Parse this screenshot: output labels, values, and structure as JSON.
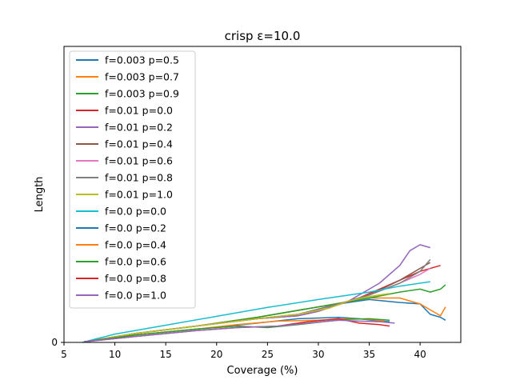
{
  "chart_data": {
    "type": "line",
    "title": "crisp ε=10.0",
    "xlabel": "Coverage (%)",
    "ylabel": "Length",
    "xlim": [
      5,
      44
    ],
    "ylim": [
      0,
      10
    ],
    "xticks": [
      5,
      10,
      15,
      20,
      25,
      30,
      35,
      40
    ],
    "yticks": [
      0
    ],
    "legend_position": "top-left",
    "series": [
      {
        "name": "f=0.003 p=0.5",
        "color": "#1f77b4",
        "points": [
          [
            7,
            0.02
          ],
          [
            12,
            0.3
          ],
          [
            18,
            0.55
          ],
          [
            24,
            0.85
          ],
          [
            30,
            1.2
          ],
          [
            35,
            1.45
          ],
          [
            38,
            1.35
          ],
          [
            40,
            1.3
          ],
          [
            41,
            0.95
          ],
          [
            42,
            0.85
          ],
          [
            42.5,
            0.75
          ]
        ]
      },
      {
        "name": "f=0.003 p=0.7",
        "color": "#ff7f0e",
        "points": [
          [
            7,
            0.02
          ],
          [
            12,
            0.3
          ],
          [
            18,
            0.55
          ],
          [
            24,
            0.85
          ],
          [
            30,
            1.2
          ],
          [
            35,
            1.5
          ],
          [
            38,
            1.5
          ],
          [
            40,
            1.3
          ],
          [
            41.5,
            1.0
          ],
          [
            42,
            0.9
          ],
          [
            42.5,
            1.2
          ]
        ]
      },
      {
        "name": "f=0.003 p=0.9",
        "color": "#2ca02c",
        "points": [
          [
            7,
            0.02
          ],
          [
            12,
            0.3
          ],
          [
            18,
            0.55
          ],
          [
            24,
            0.85
          ],
          [
            30,
            1.2
          ],
          [
            35,
            1.5
          ],
          [
            38,
            1.7
          ],
          [
            40,
            1.8
          ],
          [
            41,
            1.7
          ],
          [
            42,
            1.8
          ],
          [
            42.5,
            1.95
          ]
        ]
      },
      {
        "name": "f=0.01 p=0.0",
        "color": "#d62728",
        "points": [
          [
            7,
            0.02
          ],
          [
            12,
            0.3
          ],
          [
            18,
            0.55
          ],
          [
            24,
            0.8
          ],
          [
            28,
            0.9
          ],
          [
            30,
            1.05
          ],
          [
            34,
            1.5
          ],
          [
            36,
            1.8
          ],
          [
            38,
            2.1
          ],
          [
            40,
            2.4
          ],
          [
            42,
            2.6
          ]
        ]
      },
      {
        "name": "f=0.01 p=0.2",
        "color": "#9467bd",
        "points": [
          [
            7,
            0.02
          ],
          [
            12,
            0.3
          ],
          [
            18,
            0.55
          ],
          [
            24,
            0.8
          ],
          [
            28,
            0.9
          ],
          [
            30,
            1.05
          ],
          [
            33,
            1.4
          ],
          [
            36,
            2.0
          ],
          [
            38,
            2.6
          ],
          [
            39,
            3.1
          ],
          [
            40,
            3.3
          ],
          [
            41,
            3.2
          ]
        ]
      },
      {
        "name": "f=0.01 p=0.4",
        "color": "#8c564b",
        "points": [
          [
            7,
            0.02
          ],
          [
            12,
            0.3
          ],
          [
            18,
            0.55
          ],
          [
            24,
            0.8
          ],
          [
            28,
            0.95
          ],
          [
            32,
            1.3
          ],
          [
            35,
            1.6
          ],
          [
            38,
            2.1
          ],
          [
            40,
            2.5
          ],
          [
            41,
            2.7
          ]
        ]
      },
      {
        "name": "f=0.01 p=0.6",
        "color": "#e377c2",
        "points": [
          [
            7,
            0.02
          ],
          [
            12,
            0.3
          ],
          [
            18,
            0.55
          ],
          [
            24,
            0.8
          ],
          [
            28,
            0.95
          ],
          [
            32,
            1.3
          ],
          [
            35,
            1.6
          ],
          [
            38,
            2.0
          ],
          [
            40,
            2.3
          ],
          [
            41,
            2.5
          ]
        ]
      },
      {
        "name": "f=0.01 p=0.8",
        "color": "#7f7f7f",
        "points": [
          [
            7,
            0.02
          ],
          [
            12,
            0.3
          ],
          [
            18,
            0.55
          ],
          [
            24,
            0.8
          ],
          [
            28,
            0.95
          ],
          [
            32,
            1.3
          ],
          [
            35,
            1.6
          ],
          [
            38,
            2.0
          ],
          [
            40,
            2.4
          ],
          [
            41,
            2.8
          ]
        ]
      },
      {
        "name": "f=0.01 p=1.0",
        "color": "#bcbd22",
        "points": [
          [
            7,
            0.02
          ],
          [
            12,
            0.3
          ],
          [
            18,
            0.55
          ],
          [
            24,
            0.8
          ],
          [
            28,
            0.95
          ],
          [
            31,
            1.15
          ],
          [
            33,
            1.4
          ],
          [
            35,
            1.55
          ],
          [
            37,
            1.65
          ]
        ]
      },
      {
        "name": "f=0.0 p=0.0",
        "color": "#17becf",
        "points": [
          [
            6.8,
            0.0
          ],
          [
            10,
            0.28
          ],
          [
            15,
            0.58
          ],
          [
            20,
            0.88
          ],
          [
            25,
            1.18
          ],
          [
            30,
            1.45
          ],
          [
            35,
            1.7
          ],
          [
            38,
            1.9
          ],
          [
            41,
            2.05
          ]
        ]
      },
      {
        "name": "f=0.0 p=0.2",
        "color": "#1f77b4",
        "points": [
          [
            7,
            0.02
          ],
          [
            12,
            0.25
          ],
          [
            18,
            0.45
          ],
          [
            24,
            0.65
          ],
          [
            28,
            0.8
          ],
          [
            32,
            0.85
          ],
          [
            34,
            0.8
          ],
          [
            36,
            0.72
          ],
          [
            37,
            0.7
          ]
        ]
      },
      {
        "name": "f=0.0 p=0.4",
        "color": "#ff7f0e",
        "points": [
          [
            7,
            0.02
          ],
          [
            12,
            0.25
          ],
          [
            18,
            0.45
          ],
          [
            22,
            0.6
          ],
          [
            26,
            0.72
          ],
          [
            30,
            0.75
          ],
          [
            33,
            0.8
          ],
          [
            35,
            0.78
          ],
          [
            36.5,
            0.72
          ]
        ]
      },
      {
        "name": "f=0.0 p=0.6",
        "color": "#2ca02c",
        "points": [
          [
            7,
            0.02
          ],
          [
            12,
            0.25
          ],
          [
            18,
            0.45
          ],
          [
            22,
            0.55
          ],
          [
            25,
            0.5
          ],
          [
            28,
            0.6
          ],
          [
            31,
            0.72
          ],
          [
            33,
            0.78
          ],
          [
            35,
            0.8
          ],
          [
            37,
            0.75
          ]
        ]
      },
      {
        "name": "f=0.0 p=0.8",
        "color": "#d62728",
        "points": [
          [
            7,
            0.02
          ],
          [
            12,
            0.2
          ],
          [
            18,
            0.4
          ],
          [
            22,
            0.5
          ],
          [
            26,
            0.55
          ],
          [
            29,
            0.7
          ],
          [
            32,
            0.8
          ],
          [
            34,
            0.65
          ],
          [
            36,
            0.6
          ],
          [
            37,
            0.55
          ]
        ]
      },
      {
        "name": "f=0.0 p=1.0",
        "color": "#9467bd",
        "points": [
          [
            7,
            0.02
          ],
          [
            12,
            0.2
          ],
          [
            18,
            0.4
          ],
          [
            22,
            0.5
          ],
          [
            26,
            0.55
          ],
          [
            29,
            0.65
          ],
          [
            32,
            0.75
          ],
          [
            34,
            0.72
          ],
          [
            36,
            0.7
          ],
          [
            37.5,
            0.65
          ]
        ]
      }
    ]
  }
}
